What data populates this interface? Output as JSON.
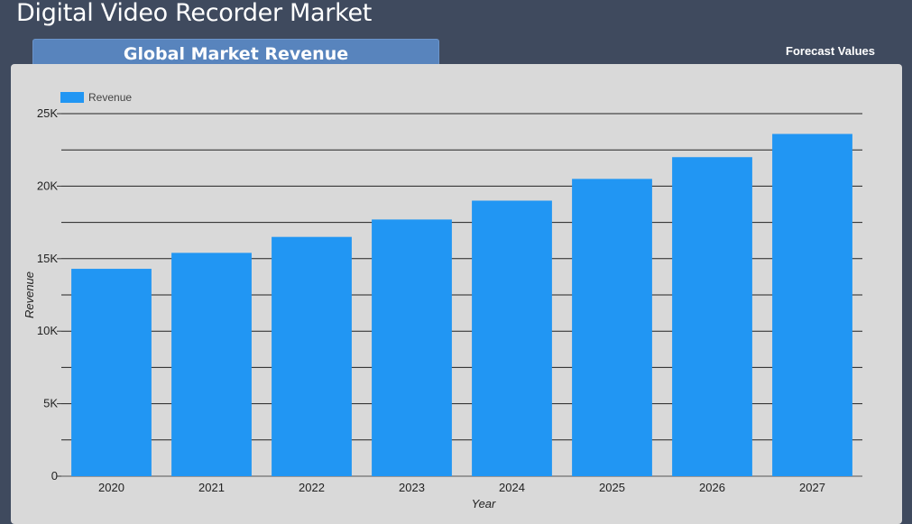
{
  "header": {
    "title": "Digital Video Recorder Market",
    "section_tab": "Global Market Revenue",
    "forecast_link": "Forecast Values"
  },
  "colors": {
    "background": "#3f4a5e",
    "panel": "#d9d9d9",
    "bar": "#2196f3",
    "tab": "#5884bd"
  },
  "chart_data": {
    "type": "bar",
    "categories": [
      "2020",
      "2021",
      "2022",
      "2023",
      "2024",
      "2025",
      "2026",
      "2027"
    ],
    "series": [
      {
        "name": "Revenue",
        "values": [
          14300,
          15400,
          16500,
          17700,
          19000,
          20500,
          22000,
          23600
        ]
      }
    ],
    "xlabel": "Year",
    "ylabel": "Revenue",
    "ylim": [
      0,
      25000
    ],
    "yticks": [
      0,
      5000,
      10000,
      15000,
      20000,
      25000
    ],
    "ytick_labels": [
      "0",
      "5K",
      "10K",
      "15K",
      "20K",
      "25K"
    ],
    "grid": true,
    "legend_position": "top-left"
  }
}
